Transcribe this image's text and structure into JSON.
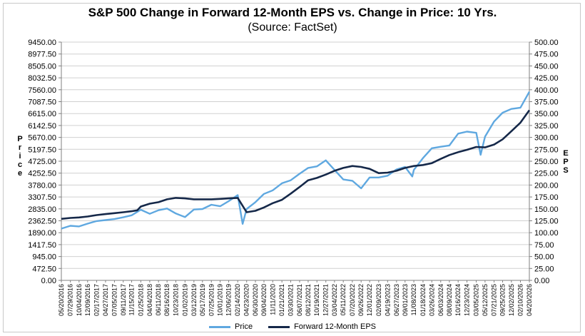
{
  "chart_data": {
    "type": "line",
    "title": "S&P 500 Change in Forward 12-Month EPS vs. Change in Price: 10 Yrs.",
    "subtitle": "(Source: FactSet)",
    "ylabel_left": "Price",
    "ylabel_right": "EPS",
    "ylim_left": [
      0,
      9450
    ],
    "ylim_right": [
      0,
      500
    ],
    "yticks_left": [
      "9450.00",
      "8977.50",
      "8505.00",
      "8032.50",
      "7560.00",
      "7087.50",
      "6615.00",
      "6142.50",
      "5670.00",
      "5197.50",
      "4725.00",
      "4252.50",
      "3780.00",
      "3307.50",
      "2835.00",
      "2362.50",
      "1890.00",
      "1417.50",
      "945.00",
      "472.50",
      "0.00"
    ],
    "yticks_right": [
      "500.00",
      "475.00",
      "450.00",
      "425.00",
      "400.00",
      "375.00",
      "350.00",
      "325.00",
      "300.00",
      "275.00",
      "250.00",
      "225.00",
      "200.00",
      "175.00",
      "150.00",
      "125.00",
      "100.00",
      "75.00",
      "50.00",
      "25.00",
      "0.00"
    ],
    "xticks": [
      "05/20/2016",
      "07/29/2016",
      "10/04/2016",
      "12/09/2016",
      "02/17/2017",
      "04/27/2017",
      "07/05/2017",
      "09/11/2017",
      "11/15/2017",
      "01/25/2018",
      "04/04/2018",
      "06/11/2018",
      "08/16/2018",
      "10/23/2018",
      "01/02/2019",
      "03/12/2019",
      "05/17/2019",
      "07/25/2019",
      "10/01/2019",
      "12/06/2019",
      "02/14/2020",
      "04/23/2020",
      "06/30/2020",
      "09/04/2020",
      "11/11/2020",
      "01/21/2021",
      "03/30/2021",
      "06/07/2021",
      "08/12/2021",
      "10/19/2021",
      "12/27/2021",
      "03/04/2022",
      "05/11/2022",
      "07/20/2022",
      "09/26/2022",
      "12/01/2022",
      "02/09/2023",
      "04/19/2023",
      "06/27/2023",
      "09/01/2023",
      "11/08/2023",
      "01/18/2024",
      "03/26/2024",
      "06/03/2024",
      "08/09/2024",
      "10/16/2024",
      "12/23/2024",
      "03/05/2025",
      "05/12/2025",
      "07/21/2025",
      "09/25/2025",
      "12/02/2025",
      "02/10/2026",
      "04/20/2026"
    ],
    "grid": true,
    "legend_position": "bottom",
    "series": [
      {
        "name": "Price",
        "axis": "left",
        "color": "#5fa8e0",
        "x": [
          "05/20/2016",
          "07/29/2016",
          "10/04/2016",
          "12/09/2016",
          "02/17/2017",
          "04/27/2017",
          "07/05/2017",
          "09/11/2017",
          "11/15/2017",
          "01/25/2018",
          "04/04/2018",
          "06/11/2018",
          "08/16/2018",
          "10/23/2018",
          "01/02/2019",
          "03/12/2019",
          "05/17/2019",
          "07/25/2019",
          "10/01/2019",
          "12/06/2019",
          "02/14/2020",
          "03/23/2020",
          "04/23/2020",
          "06/30/2020",
          "09/04/2020",
          "11/11/2020",
          "01/21/2021",
          "03/30/2021",
          "06/07/2021",
          "08/12/2021",
          "10/19/2021",
          "12/27/2021",
          "03/04/2022",
          "05/11/2022",
          "07/20/2022",
          "09/26/2022",
          "12/01/2022",
          "02/09/2023",
          "04/19/2023",
          "06/27/2023",
          "09/01/2023",
          "10/27/2023",
          "11/08/2023",
          "01/18/2024",
          "03/26/2024",
          "06/03/2024",
          "08/09/2024",
          "10/16/2024",
          "12/23/2024",
          "03/05/2025",
          "04/08/2025",
          "05/12/2025",
          "07/21/2025",
          "09/25/2025",
          "12/02/2025",
          "02/10/2026",
          "04/20/2026"
        ],
        "values": [
          2050,
          2165,
          2140,
          2250,
          2350,
          2390,
          2430,
          2500,
          2580,
          2800,
          2640,
          2780,
          2850,
          2650,
          2510,
          2810,
          2830,
          3000,
          2940,
          3140,
          3380,
          2240,
          2830,
          3100,
          3430,
          3570,
          3850,
          3970,
          4230,
          4460,
          4520,
          4760,
          4380,
          4000,
          3950,
          3650,
          4080,
          4080,
          4150,
          4400,
          4500,
          4120,
          4380,
          4850,
          5240,
          5300,
          5350,
          5820,
          5900,
          5850,
          4980,
          5700,
          6300,
          6650,
          6800,
          6850,
          7480
        ]
      },
      {
        "name": "Forward 12-Month EPS",
        "axis": "right",
        "color": "#152849",
        "x": [
          "05/20/2016",
          "07/29/2016",
          "10/04/2016",
          "12/09/2016",
          "02/17/2017",
          "04/27/2017",
          "07/05/2017",
          "09/11/2017",
          "11/15/2017",
          "12/29/2017",
          "01/25/2018",
          "04/04/2018",
          "06/11/2018",
          "08/16/2018",
          "10/23/2018",
          "01/02/2019",
          "03/12/2019",
          "05/17/2019",
          "07/25/2019",
          "10/01/2019",
          "12/06/2019",
          "02/14/2020",
          "04/23/2020",
          "06/30/2020",
          "09/04/2020",
          "11/11/2020",
          "01/21/2021",
          "03/30/2021",
          "06/07/2021",
          "08/12/2021",
          "10/19/2021",
          "12/27/2021",
          "03/04/2022",
          "05/11/2022",
          "07/20/2022",
          "09/26/2022",
          "12/01/2022",
          "02/09/2023",
          "04/19/2023",
          "06/27/2023",
          "09/01/2023",
          "11/08/2023",
          "01/18/2024",
          "03/26/2024",
          "06/03/2024",
          "08/09/2024",
          "10/16/2024",
          "12/23/2024",
          "03/05/2025",
          "05/12/2025",
          "07/21/2025",
          "09/25/2025",
          "12/02/2025",
          "02/10/2026",
          "04/20/2026"
        ],
        "values": [
          129,
          131,
          132,
          134,
          137,
          139,
          141,
          143,
          145,
          147,
          155,
          161,
          164,
          170,
          173,
          172,
          170,
          170,
          170,
          171,
          172,
          173,
          143,
          146,
          153,
          162,
          169,
          182,
          196,
          210,
          215,
          222,
          230,
          236,
          240,
          238,
          234,
          225,
          226,
          230,
          236,
          240,
          242,
          246,
          255,
          263,
          269,
          274,
          280,
          279,
          285,
          296,
          313,
          331,
          357
        ]
      }
    ]
  }
}
